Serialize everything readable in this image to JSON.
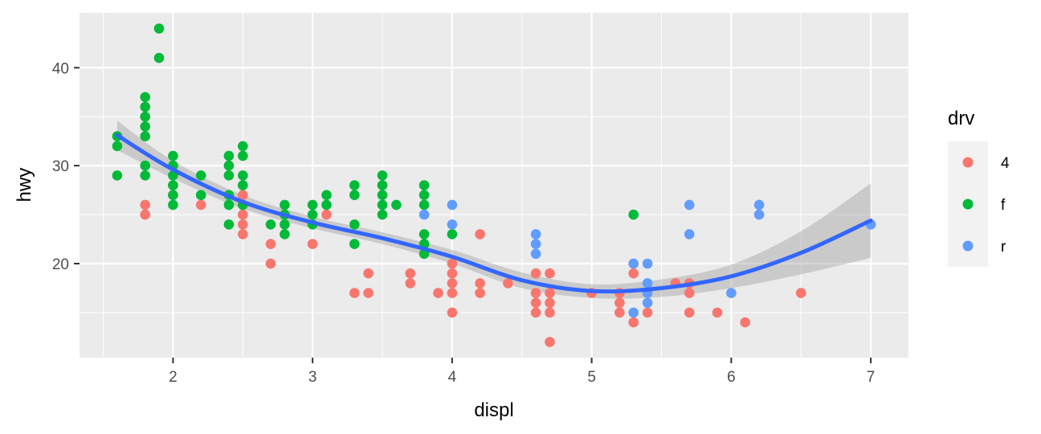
{
  "chart_data": {
    "type": "scatter",
    "xlabel": "displ",
    "ylabel": "hwy",
    "xlim": [
      1.33,
      7.27
    ],
    "ylim": [
      10.4,
      45.6
    ],
    "x_ticks": [
      2,
      3,
      4,
      5,
      6,
      7
    ],
    "y_ticks": [
      20,
      30,
      40
    ],
    "grid": true,
    "legend": {
      "title": "drv",
      "position": "right",
      "entries": [
        {
          "label": "4",
          "color": "#F8766D"
        },
        {
          "label": "f",
          "color": "#00BA38"
        },
        {
          "label": "r",
          "color": "#619CFF"
        }
      ]
    },
    "series": [
      {
        "name": "4",
        "color": "#F8766D",
        "points": [
          [
            1.8,
            26
          ],
          [
            1.8,
            25
          ],
          [
            2.0,
            28
          ],
          [
            2.0,
            27
          ],
          [
            2.2,
            26
          ],
          [
            2.5,
            27
          ],
          [
            2.5,
            26
          ],
          [
            2.5,
            25
          ],
          [
            2.5,
            24
          ],
          [
            2.5,
            23
          ],
          [
            2.7,
            22
          ],
          [
            2.7,
            20
          ],
          [
            2.8,
            25
          ],
          [
            3.0,
            22
          ],
          [
            3.1,
            25
          ],
          [
            3.3,
            17
          ],
          [
            3.4,
            19
          ],
          [
            3.4,
            17
          ],
          [
            3.7,
            19
          ],
          [
            3.7,
            18
          ],
          [
            3.9,
            17
          ],
          [
            4.0,
            20
          ],
          [
            4.0,
            19
          ],
          [
            4.0,
            18
          ],
          [
            4.0,
            17
          ],
          [
            4.0,
            15
          ],
          [
            4.2,
            23
          ],
          [
            4.2,
            18
          ],
          [
            4.2,
            17
          ],
          [
            4.4,
            18
          ],
          [
            4.6,
            19
          ],
          [
            4.6,
            17
          ],
          [
            4.6,
            16
          ],
          [
            4.6,
            15
          ],
          [
            4.7,
            19
          ],
          [
            4.7,
            17
          ],
          [
            4.7,
            16
          ],
          [
            4.7,
            15
          ],
          [
            4.7,
            12
          ],
          [
            5.0,
            17
          ],
          [
            5.2,
            17
          ],
          [
            5.2,
            16
          ],
          [
            5.2,
            15
          ],
          [
            5.3,
            19
          ],
          [
            5.3,
            14
          ],
          [
            5.4,
            15
          ],
          [
            5.6,
            18
          ],
          [
            5.7,
            18
          ],
          [
            5.7,
            17
          ],
          [
            5.7,
            15
          ],
          [
            5.9,
            15
          ],
          [
            6.1,
            14
          ],
          [
            6.5,
            17
          ]
        ]
      },
      {
        "name": "f",
        "color": "#00BA38",
        "points": [
          [
            1.6,
            33
          ],
          [
            1.6,
            32
          ],
          [
            1.6,
            29
          ],
          [
            1.8,
            37
          ],
          [
            1.8,
            36
          ],
          [
            1.8,
            35
          ],
          [
            1.8,
            34
          ],
          [
            1.8,
            33
          ],
          [
            1.8,
            30
          ],
          [
            1.8,
            29
          ],
          [
            1.9,
            44
          ],
          [
            1.9,
            41
          ],
          [
            2.0,
            31
          ],
          [
            2.0,
            30
          ],
          [
            2.0,
            29
          ],
          [
            2.0,
            28
          ],
          [
            2.0,
            27
          ],
          [
            2.0,
            26
          ],
          [
            2.2,
            29
          ],
          [
            2.2,
            27
          ],
          [
            2.4,
            31
          ],
          [
            2.4,
            30
          ],
          [
            2.4,
            29
          ],
          [
            2.4,
            27
          ],
          [
            2.4,
            26
          ],
          [
            2.4,
            24
          ],
          [
            2.5,
            32
          ],
          [
            2.5,
            31
          ],
          [
            2.5,
            29
          ],
          [
            2.5,
            28
          ],
          [
            2.5,
            26
          ],
          [
            2.7,
            24
          ],
          [
            2.8,
            26
          ],
          [
            2.8,
            25
          ],
          [
            2.8,
            24
          ],
          [
            2.8,
            23
          ],
          [
            3.0,
            26
          ],
          [
            3.0,
            25
          ],
          [
            3.0,
            24
          ],
          [
            3.1,
            27
          ],
          [
            3.1,
            26
          ],
          [
            3.3,
            28
          ],
          [
            3.3,
            27
          ],
          [
            3.3,
            24
          ],
          [
            3.3,
            22
          ],
          [
            3.5,
            29
          ],
          [
            3.5,
            28
          ],
          [
            3.5,
            27
          ],
          [
            3.5,
            26
          ],
          [
            3.5,
            25
          ],
          [
            3.6,
            26
          ],
          [
            3.8,
            28
          ],
          [
            3.8,
            27
          ],
          [
            3.8,
            26
          ],
          [
            3.8,
            23
          ],
          [
            3.8,
            22
          ],
          [
            3.8,
            21
          ],
          [
            4.0,
            23
          ],
          [
            5.3,
            25
          ]
        ]
      },
      {
        "name": "r",
        "color": "#619CFF",
        "points": [
          [
            3.8,
            25
          ],
          [
            4.0,
            26
          ],
          [
            4.0,
            24
          ],
          [
            4.6,
            23
          ],
          [
            4.6,
            22
          ],
          [
            4.6,
            21
          ],
          [
            5.3,
            20
          ],
          [
            5.3,
            15
          ],
          [
            5.4,
            20
          ],
          [
            5.4,
            18
          ],
          [
            5.4,
            17
          ],
          [
            5.4,
            16
          ],
          [
            5.7,
            26
          ],
          [
            5.7,
            23
          ],
          [
            6.0,
            17
          ],
          [
            6.2,
            26
          ],
          [
            6.2,
            25
          ],
          [
            7.0,
            24
          ]
        ]
      }
    ],
    "smooth": {
      "color": "#3366FF",
      "band_color": "#999999",
      "x": [
        1.6,
        2.0,
        2.5,
        3.0,
        3.5,
        4.0,
        4.5,
        5.0,
        5.5,
        6.0,
        6.5,
        7.0
      ],
      "y": [
        33.1,
        29.6,
        26.3,
        24.2,
        22.6,
        20.7,
        18.3,
        17.2,
        17.5,
        18.7,
        21.1,
        24.4
      ],
      "lower": [
        31.6,
        28.7,
        25.6,
        23.6,
        22.0,
        20.0,
        17.5,
        16.5,
        16.6,
        17.5,
        18.9,
        20.6
      ],
      "upper": [
        34.6,
        30.5,
        27.0,
        24.8,
        23.2,
        21.4,
        19.1,
        17.9,
        18.4,
        19.9,
        23.3,
        28.2
      ]
    }
  }
}
